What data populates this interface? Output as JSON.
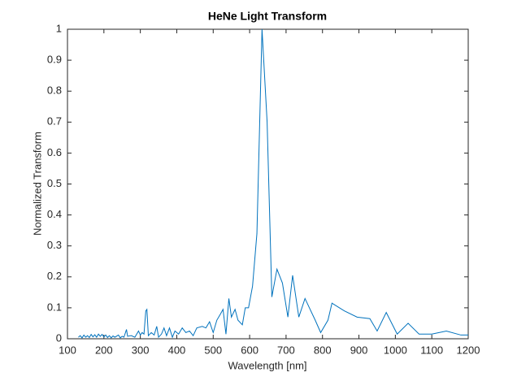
{
  "chart_data": {
    "type": "line",
    "title": "HeNe Light Transform",
    "x_label": "Wavelength [nm]",
    "y_label": "Normalized Transform",
    "xlim": [
      100,
      1200
    ],
    "xticks": [
      100,
      200,
      300,
      400,
      500,
      600,
      700,
      800,
      900,
      1000,
      1100,
      1200
    ],
    "ylim": [
      0,
      1
    ],
    "yticks": [
      0,
      0.1,
      0.2,
      0.3,
      0.4,
      0.5,
      0.6,
      0.7,
      0.8,
      0.9,
      1
    ],
    "grid": false,
    "series": [
      {
        "color": "#0072bd",
        "x": [
          130,
          135,
          140,
          145,
          150,
          155,
          160,
          165,
          170,
          175,
          180,
          185,
          190,
          195,
          200,
          205,
          210,
          215,
          220,
          225,
          230,
          240,
          245,
          250,
          255,
          262,
          265,
          275,
          285,
          295,
          300,
          305,
          310,
          315,
          318,
          322,
          330,
          338,
          345,
          350,
          358,
          365,
          372,
          380,
          388,
          395,
          405,
          415,
          425,
          435,
          445,
          455,
          470,
          480,
          490,
          500,
          510,
          520,
          527,
          535,
          543,
          550,
          560,
          568,
          580,
          588,
          597,
          608,
          620,
          634,
          648,
          661,
          675,
          690,
          705,
          718,
          735,
          752,
          780,
          795,
          815,
          826,
          860,
          895,
          930,
          950,
          975,
          1005,
          1035,
          1065,
          1100,
          1140,
          1180,
          1200
        ],
        "values": [
          0.005,
          0.01,
          0.003,
          0.012,
          0.005,
          0.01,
          0.004,
          0.014,
          0.006,
          0.013,
          0.005,
          0.015,
          0.008,
          0.014,
          0.006,
          0.012,
          0.004,
          0.01,
          0.003,
          0.009,
          0.005,
          0.012,
          0.003,
          0.008,
          0.005,
          0.03,
          0.008,
          0.01,
          0.005,
          0.025,
          0.012,
          0.02,
          0.015,
          0.09,
          0.095,
          0.01,
          0.02,
          0.012,
          0.04,
          0.005,
          0.015,
          0.035,
          0.01,
          0.035,
          0.005,
          0.025,
          0.015,
          0.035,
          0.02,
          0.025,
          0.01,
          0.035,
          0.04,
          0.035,
          0.055,
          0.02,
          0.06,
          0.08,
          0.095,
          0.015,
          0.13,
          0.07,
          0.095,
          0.06,
          0.045,
          0.1,
          0.1,
          0.17,
          0.34,
          1.0,
          0.7,
          0.135,
          0.225,
          0.18,
          0.07,
          0.205,
          0.07,
          0.13,
          0.06,
          0.02,
          0.06,
          0.115,
          0.09,
          0.07,
          0.065,
          0.025,
          0.085,
          0.015,
          0.05,
          0.015,
          0.015,
          0.025,
          0.012,
          0.012
        ]
      }
    ]
  }
}
